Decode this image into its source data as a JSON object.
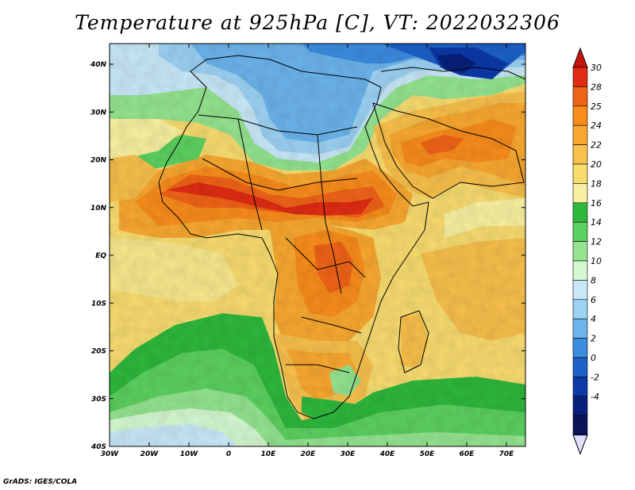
{
  "title": "Temperature at 925hPa [C], VT: 2022032306",
  "credit": "GrADS: IGES/COLA",
  "map": {
    "lat_ticks": [
      "40N",
      "30N",
      "20N",
      "10N",
      "EQ",
      "10S",
      "20S",
      "30S",
      "40S"
    ],
    "lon_ticks": [
      "30W",
      "20W",
      "10W",
      "0",
      "10E",
      "20E",
      "30E",
      "40E",
      "50E",
      "60E",
      "70E"
    ]
  },
  "colorbar": {
    "labels": [
      "30",
      "28",
      "25",
      "24",
      "22",
      "20",
      "18",
      "16",
      "14",
      "12",
      "10",
      "8",
      "6",
      "4",
      "2",
      "0",
      "-2",
      "-4"
    ],
    "colors": [
      "#e02c14",
      "#f06418",
      "#f88c1c",
      "#f8a830",
      "#f8c04c",
      "#f8dc70",
      "#f8f0a0",
      "#2eb83c",
      "#5cd060",
      "#94e490",
      "#d4f8d0",
      "#c8e8f8",
      "#9cd2f4",
      "#6cb4ec",
      "#3c8ce0",
      "#1c60c8",
      "#0c38a8",
      "#08207c",
      "#0a1458"
    ],
    "top_color": "#c8140c",
    "bottom_color": "#e0e0ff"
  }
}
